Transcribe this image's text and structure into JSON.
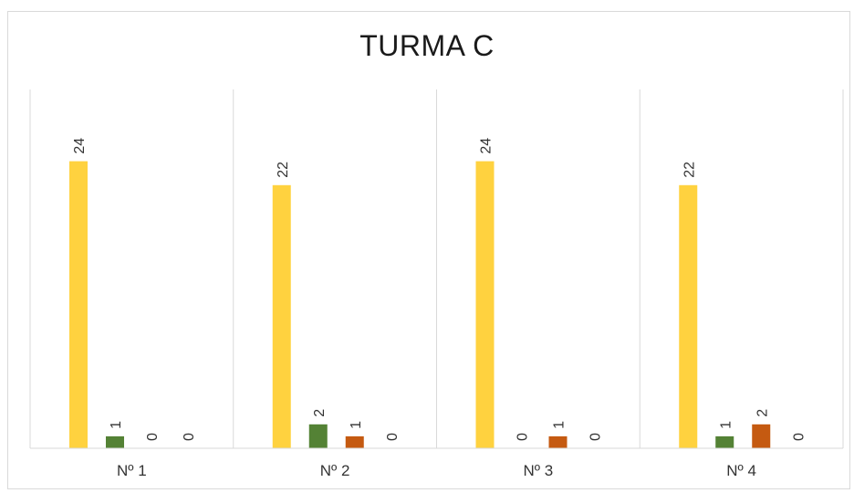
{
  "chart_data": {
    "type": "bar",
    "title": "TURMA C",
    "categories": [
      "Nº 1",
      "Nº 2",
      "Nº 3",
      "Nº 4"
    ],
    "series": [
      {
        "values": [
          24,
          22,
          24,
          22
        ],
        "color": "#ffd23f"
      },
      {
        "values": [
          1,
          2,
          0,
          1
        ],
        "color": "#548235"
      },
      {
        "values": [
          0,
          1,
          1,
          2
        ],
        "color": "#c55a11"
      },
      {
        "values": [
          0,
          0,
          0,
          0
        ],
        "color": "#7f7f7f"
      }
    ],
    "xlabel": "",
    "ylabel": "",
    "ylim": [
      0,
      30
    ],
    "grid": false,
    "legend": "none",
    "data_labels": true
  }
}
